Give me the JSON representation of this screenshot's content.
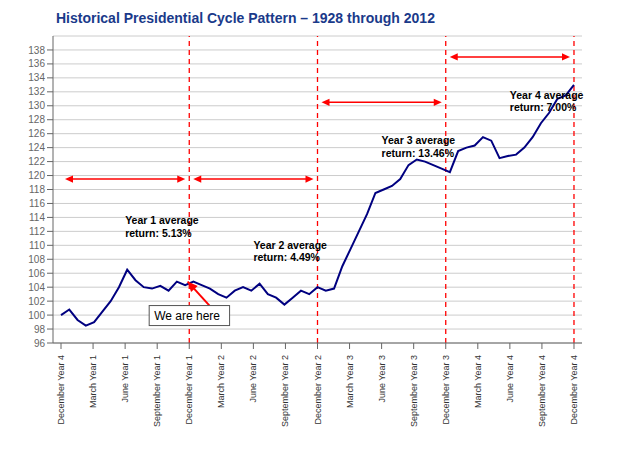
{
  "chart_data": {
    "type": "line",
    "title": "Historical Presidential Cycle Pattern – 1928 through 2012",
    "title_color": "#1a3a8a",
    "color": "#000080",
    "grid": true,
    "x": [
      0,
      1.032258,
      2.064516,
      3.096774,
      4.129032,
      5.16129,
      6.193548,
      7.225806,
      8.258065,
      9.290323,
      10.322581,
      11.354839,
      12.387097,
      13.419355,
      14.451613,
      15.483871,
      16.516129,
      17.548387,
      18.580645,
      19.612903,
      20.645161,
      21.677419,
      22.709677,
      23.741935,
      24.774194,
      25.806452,
      26.83871,
      27.870968,
      28.903226,
      29.935484,
      30.967742,
      32,
      33.032258,
      34.064516,
      35.096774,
      36.129032,
      37.16129,
      38.193548,
      39.225806,
      40.258065,
      41.290323,
      42.322581,
      43.354839,
      44.387097,
      45.419355,
      46.451613,
      47.483871,
      48.516129,
      49.548387,
      50.580645,
      51.612903,
      52.645161,
      53.677419,
      54.709677,
      55.741935,
      56.774194,
      57.806452,
      58.83871,
      59.870968,
      60.903226,
      61.935484,
      62.967742,
      64
    ],
    "values": [
      100.0,
      100.8,
      99.3,
      98.5,
      99.0,
      100.5,
      102.0,
      104.0,
      106.5,
      105.0,
      104.0,
      103.8,
      104.2,
      103.5,
      104.8,
      104.3,
      104.8,
      104.3,
      103.8,
      103.0,
      102.5,
      103.5,
      104.0,
      103.5,
      104.5,
      103.0,
      102.5,
      101.5,
      102.5,
      103.5,
      103.0,
      104.0,
      103.5,
      103.8,
      107.0,
      109.5,
      112.0,
      114.5,
      117.5,
      118.0,
      118.5,
      119.5,
      121.5,
      122.3,
      122.0,
      121.5,
      121.0,
      120.5,
      123.5,
      124.0,
      124.3,
      125.5,
      125.0,
      122.5,
      122.8,
      123.0,
      124.0,
      125.5,
      127.5,
      129.0,
      131.0,
      131.5,
      133.0
    ],
    "xlim": [
      -1,
      65
    ],
    "xticks": [
      {
        "value": 0,
        "label": "December Year 4"
      },
      {
        "value": 4,
        "label": "March Year 1"
      },
      {
        "value": 8,
        "label": "June Year 1"
      },
      {
        "value": 12,
        "label": "September Year 1"
      },
      {
        "value": 16,
        "label": "December Year 1"
      },
      {
        "value": 20,
        "label": "March Year 2"
      },
      {
        "value": 24,
        "label": "June Year 2"
      },
      {
        "value": 28,
        "label": "September Year 2"
      },
      {
        "value": 32,
        "label": "December Year 2"
      },
      {
        "value": 36,
        "label": "March Year 3"
      },
      {
        "value": 40,
        "label": "June Year 3"
      },
      {
        "value": 44,
        "label": "September Year 3"
      },
      {
        "value": 48,
        "label": "December Year 3"
      },
      {
        "value": 52,
        "label": "March Year 4"
      },
      {
        "value": 56,
        "label": "June Year 4"
      },
      {
        "value": 60,
        "label": "September Year 4"
      },
      {
        "value": 64,
        "label": "December Year 4"
      }
    ],
    "ylim": [
      96,
      140
    ],
    "yticks": [
      96,
      98,
      100,
      102,
      104,
      106,
      108,
      110,
      112,
      114,
      116,
      118,
      120,
      122,
      124,
      126,
      128,
      130,
      132,
      134,
      136,
      138
    ],
    "vlines": [
      16,
      32,
      48,
      64
    ],
    "vline_color": "red",
    "arrow_color": "red",
    "annotations": [
      {
        "text": "Year 1 average\nreturn: 5.13%",
        "x": 8,
        "y": 114.5,
        "arrow_x": [
          0.5,
          15.5
        ],
        "arrow_y": 119.5
      },
      {
        "text": "Year 2 average\nreturn: 4.49%",
        "x": 24,
        "y": 111.0,
        "arrow_x": [
          16.5,
          31.5
        ],
        "arrow_y": 119.5
      },
      {
        "text": "Year 3 average\nreturn: 13.46%",
        "x": 40,
        "y": 126.0,
        "arrow_x": [
          32.5,
          47.5
        ],
        "arrow_y": 130.5
      },
      {
        "text": "Year 4 average\nreturn: 7.00%",
        "x": 56,
        "y": 132.5,
        "arrow_x": [
          48.5,
          63.5
        ],
        "arrow_y": 137.0
      }
    ],
    "callout": {
      "text": "We are here",
      "x": 11,
      "y": 98.5,
      "arrow_tip": [
        15.8,
        104.8
      ]
    }
  }
}
